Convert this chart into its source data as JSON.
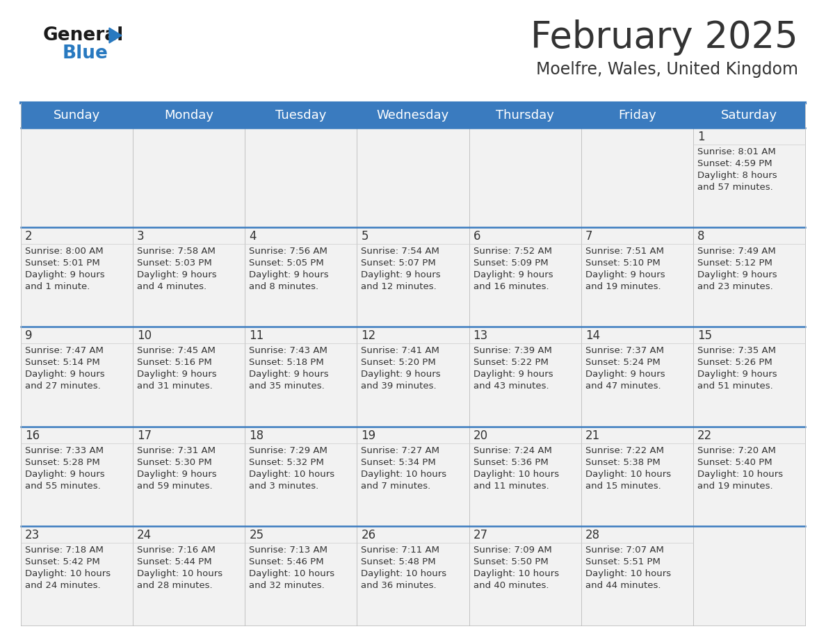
{
  "title": "February 2025",
  "subtitle": "Moelfre, Wales, United Kingdom",
  "header_color": "#3a7bbf",
  "header_text_color": "#ffffff",
  "cell_bg": "#f2f2f2",
  "day_headers": [
    "Sunday",
    "Monday",
    "Tuesday",
    "Wednesday",
    "Thursday",
    "Friday",
    "Saturday"
  ],
  "title_fontsize": 38,
  "subtitle_fontsize": 17,
  "header_fontsize": 13,
  "cell_day_fontsize": 12,
  "cell_info_fontsize": 9.5,
  "logo_color1": "#1a1a1a",
  "logo_color2": "#2879c0",
  "divider_color": "#3a7bbf",
  "text_color": "#333333",
  "days": [
    {
      "day": 1,
      "col": 6,
      "row": 0,
      "sunrise": "8:01 AM",
      "sunset": "4:59 PM",
      "daylight_h": "8 hours",
      "daylight_m": "and 57 minutes."
    },
    {
      "day": 2,
      "col": 0,
      "row": 1,
      "sunrise": "8:00 AM",
      "sunset": "5:01 PM",
      "daylight_h": "9 hours",
      "daylight_m": "and 1 minute."
    },
    {
      "day": 3,
      "col": 1,
      "row": 1,
      "sunrise": "7:58 AM",
      "sunset": "5:03 PM",
      "daylight_h": "9 hours",
      "daylight_m": "and 4 minutes."
    },
    {
      "day": 4,
      "col": 2,
      "row": 1,
      "sunrise": "7:56 AM",
      "sunset": "5:05 PM",
      "daylight_h": "9 hours",
      "daylight_m": "and 8 minutes."
    },
    {
      "day": 5,
      "col": 3,
      "row": 1,
      "sunrise": "7:54 AM",
      "sunset": "5:07 PM",
      "daylight_h": "9 hours",
      "daylight_m": "and 12 minutes."
    },
    {
      "day": 6,
      "col": 4,
      "row": 1,
      "sunrise": "7:52 AM",
      "sunset": "5:09 PM",
      "daylight_h": "9 hours",
      "daylight_m": "and 16 minutes."
    },
    {
      "day": 7,
      "col": 5,
      "row": 1,
      "sunrise": "7:51 AM",
      "sunset": "5:10 PM",
      "daylight_h": "9 hours",
      "daylight_m": "and 19 minutes."
    },
    {
      "day": 8,
      "col": 6,
      "row": 1,
      "sunrise": "7:49 AM",
      "sunset": "5:12 PM",
      "daylight_h": "9 hours",
      "daylight_m": "and 23 minutes."
    },
    {
      "day": 9,
      "col": 0,
      "row": 2,
      "sunrise": "7:47 AM",
      "sunset": "5:14 PM",
      "daylight_h": "9 hours",
      "daylight_m": "and 27 minutes."
    },
    {
      "day": 10,
      "col": 1,
      "row": 2,
      "sunrise": "7:45 AM",
      "sunset": "5:16 PM",
      "daylight_h": "9 hours",
      "daylight_m": "and 31 minutes."
    },
    {
      "day": 11,
      "col": 2,
      "row": 2,
      "sunrise": "7:43 AM",
      "sunset": "5:18 PM",
      "daylight_h": "9 hours",
      "daylight_m": "and 35 minutes."
    },
    {
      "day": 12,
      "col": 3,
      "row": 2,
      "sunrise": "7:41 AM",
      "sunset": "5:20 PM",
      "daylight_h": "9 hours",
      "daylight_m": "and 39 minutes."
    },
    {
      "day": 13,
      "col": 4,
      "row": 2,
      "sunrise": "7:39 AM",
      "sunset": "5:22 PM",
      "daylight_h": "9 hours",
      "daylight_m": "and 43 minutes."
    },
    {
      "day": 14,
      "col": 5,
      "row": 2,
      "sunrise": "7:37 AM",
      "sunset": "5:24 PM",
      "daylight_h": "9 hours",
      "daylight_m": "and 47 minutes."
    },
    {
      "day": 15,
      "col": 6,
      "row": 2,
      "sunrise": "7:35 AM",
      "sunset": "5:26 PM",
      "daylight_h": "9 hours",
      "daylight_m": "and 51 minutes."
    },
    {
      "day": 16,
      "col": 0,
      "row": 3,
      "sunrise": "7:33 AM",
      "sunset": "5:28 PM",
      "daylight_h": "9 hours",
      "daylight_m": "and 55 minutes."
    },
    {
      "day": 17,
      "col": 1,
      "row": 3,
      "sunrise": "7:31 AM",
      "sunset": "5:30 PM",
      "daylight_h": "9 hours",
      "daylight_m": "and 59 minutes."
    },
    {
      "day": 18,
      "col": 2,
      "row": 3,
      "sunrise": "7:29 AM",
      "sunset": "5:32 PM",
      "daylight_h": "10 hours",
      "daylight_m": "and 3 minutes."
    },
    {
      "day": 19,
      "col": 3,
      "row": 3,
      "sunrise": "7:27 AM",
      "sunset": "5:34 PM",
      "daylight_h": "10 hours",
      "daylight_m": "and 7 minutes."
    },
    {
      "day": 20,
      "col": 4,
      "row": 3,
      "sunrise": "7:24 AM",
      "sunset": "5:36 PM",
      "daylight_h": "10 hours",
      "daylight_m": "and 11 minutes."
    },
    {
      "day": 21,
      "col": 5,
      "row": 3,
      "sunrise": "7:22 AM",
      "sunset": "5:38 PM",
      "daylight_h": "10 hours",
      "daylight_m": "and 15 minutes."
    },
    {
      "day": 22,
      "col": 6,
      "row": 3,
      "sunrise": "7:20 AM",
      "sunset": "5:40 PM",
      "daylight_h": "10 hours",
      "daylight_m": "and 19 minutes."
    },
    {
      "day": 23,
      "col": 0,
      "row": 4,
      "sunrise": "7:18 AM",
      "sunset": "5:42 PM",
      "daylight_h": "10 hours",
      "daylight_m": "and 24 minutes."
    },
    {
      "day": 24,
      "col": 1,
      "row": 4,
      "sunrise": "7:16 AM",
      "sunset": "5:44 PM",
      "daylight_h": "10 hours",
      "daylight_m": "and 28 minutes."
    },
    {
      "day": 25,
      "col": 2,
      "row": 4,
      "sunrise": "7:13 AM",
      "sunset": "5:46 PM",
      "daylight_h": "10 hours",
      "daylight_m": "and 32 minutes."
    },
    {
      "day": 26,
      "col": 3,
      "row": 4,
      "sunrise": "7:11 AM",
      "sunset": "5:48 PM",
      "daylight_h": "10 hours",
      "daylight_m": "and 36 minutes."
    },
    {
      "day": 27,
      "col": 4,
      "row": 4,
      "sunrise": "7:09 AM",
      "sunset": "5:50 PM",
      "daylight_h": "10 hours",
      "daylight_m": "and 40 minutes."
    },
    {
      "day": 28,
      "col": 5,
      "row": 4,
      "sunrise": "7:07 AM",
      "sunset": "5:51 PM",
      "daylight_h": "10 hours",
      "daylight_m": "and 44 minutes."
    }
  ]
}
